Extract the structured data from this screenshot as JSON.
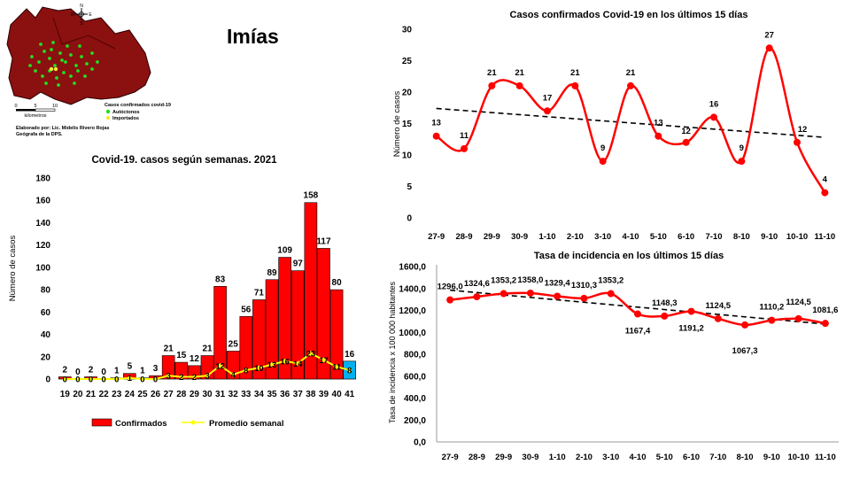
{
  "page_title": "Imías",
  "map": {
    "legend_title": "Casos confirmados covid-19",
    "legend_autoctonos": "Autóctonos",
    "legend_importados": "Importados",
    "scale_ticks": [
      "0",
      "5",
      "10"
    ],
    "scale_unit": "kilometros",
    "credit_line1": "Elaborado por: Lic. Midelis Rivero Rojas",
    "credit_line2": "Geógrafa de la DPS.",
    "compass_n": "N",
    "compass_s": "S",
    "compass_w": "W",
    "compass_e": "E",
    "colors": {
      "land": "#8b1010",
      "autoctono": "#22dd22",
      "importado": "#eeee33"
    }
  },
  "chart_data": [
    {
      "type": "bar",
      "title": "Covid-19. casos según semanas. 2021",
      "ylabel": "Número de casos",
      "xlabel": "",
      "ylim": [
        0,
        180
      ],
      "yticks": [
        "0",
        "20",
        "40",
        "60",
        "80",
        "100",
        "120",
        "140",
        "160",
        "180"
      ],
      "categories": [
        "19",
        "20",
        "21",
        "22",
        "23",
        "24",
        "25",
        "26",
        "27",
        "28",
        "29",
        "30",
        "31",
        "32",
        "33",
        "34",
        "35",
        "36",
        "37",
        "38",
        "39",
        "40",
        "41"
      ],
      "series": [
        {
          "name": "Confirmados",
          "color": "#ff0000",
          "values": [
            2,
            0,
            2,
            0,
            1,
            5,
            1,
            3,
            21,
            15,
            12,
            21,
            83,
            25,
            56,
            71,
            89,
            109,
            97,
            158,
            117,
            80,
            16
          ],
          "last_bar_color": "#00b0f0"
        },
        {
          "name": "Promedio semanal",
          "color": "#ffff00",
          "values": [
            0,
            0,
            0,
            0,
            0,
            1,
            0,
            0,
            3,
            2,
            2,
            3,
            12,
            4,
            8,
            10,
            13,
            16,
            14,
            23,
            17,
            11,
            8
          ]
        }
      ],
      "legend": "bottom"
    },
    {
      "type": "line",
      "title": "Casos confirmados  Covid-19  en los últimos 15 días",
      "ylabel": "Número de casos",
      "xlabel": "",
      "ylim": [
        0,
        30
      ],
      "yticks": [
        "0",
        "5",
        "10",
        "15",
        "20",
        "25",
        "30"
      ],
      "categories": [
        "27-9",
        "28-9",
        "29-9",
        "30-9",
        "1-10",
        "2-10",
        "3-10",
        "4-10",
        "5-10",
        "6-10",
        "7-10",
        "8-10",
        "9-10",
        "10-10",
        "11-10"
      ],
      "series": [
        {
          "name": "Casos",
          "color": "#ff0000",
          "values": [
            13,
            11,
            21,
            21,
            17,
            21,
            9,
            21,
            13,
            12,
            16,
            9,
            27,
            12,
            4
          ]
        }
      ],
      "trend": {
        "start": 17.4,
        "end": 12.8,
        "color": "#000000"
      }
    },
    {
      "type": "line",
      "title": "Tasa de incidencia  en los últimos 15 días",
      "ylabel": "Tasa de incidencia x 100 000 habitantes",
      "xlabel": "",
      "ylim": [
        0,
        1600
      ],
      "yticks": [
        "0,0",
        "200,0",
        "400,0",
        "600,0",
        "800,0",
        "1000,0",
        "1200,0",
        "1400,0",
        "1600,0"
      ],
      "categories": [
        "27-9",
        "28-9",
        "29-9",
        "30-9",
        "1-10",
        "2-10",
        "3-10",
        "4-10",
        "5-10",
        "6-10",
        "7-10",
        "8-10",
        "9-10",
        "10-10",
        "11-10"
      ],
      "series": [
        {
          "name": "Tasa",
          "color": "#ff0000",
          "values": [
            1296.0,
            1324.6,
            1353.2,
            1358.0,
            1329.4,
            1310.3,
            1353.2,
            1167.4,
            1148.3,
            1191.2,
            1124.5,
            1067.3,
            1110.2,
            1124.5,
            1081.6
          ]
        }
      ],
      "data_labels": [
        "1296,0",
        "1324,6",
        "1353,2",
        "1358,0",
        "1329,4",
        "1310,3",
        "1353,2",
        "1167,4",
        "1148,3",
        "1191,2",
        "1124,5",
        "1067,3",
        "1110,2",
        "1124,5",
        "1081,6"
      ],
      "trend": {
        "start": 1385,
        "end": 1075,
        "color": "#000000"
      }
    }
  ]
}
